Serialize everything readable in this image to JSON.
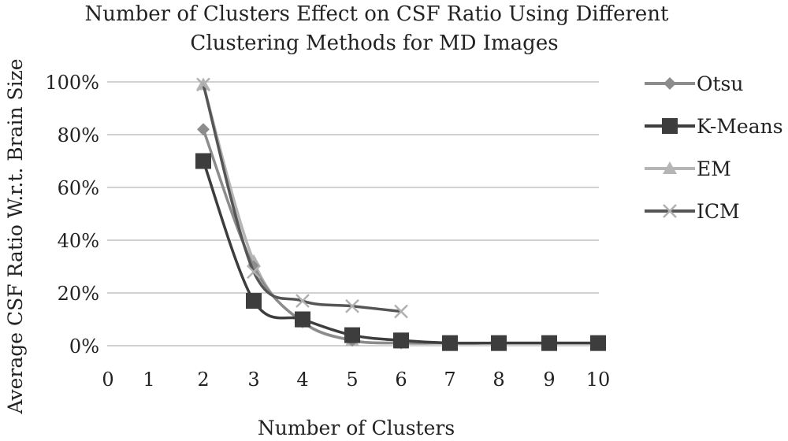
{
  "chart_data": {
    "type": "line",
    "title_lines": [
      "Number of Clusters Effect on CSF Ratio Using Different",
      "Clustering Methods for MD Images"
    ],
    "xlabel": "Number of Clusters",
    "ylabel": "Average CSF Ratio W.r.t. Brain Size",
    "x_tick_labels": [
      "0",
      "1",
      "2",
      "3",
      "4",
      "5",
      "6",
      "7",
      "8",
      "9",
      "10"
    ],
    "y_tick_labels": [
      "0%",
      "20%",
      "40%",
      "60%",
      "80%",
      "100%"
    ],
    "ylim": [
      0,
      100
    ],
    "grid": true,
    "legend_position": "right",
    "series": [
      {
        "name": "Otsu",
        "marker": "diamond",
        "color": "#8c8c8c",
        "x": [
          2,
          3,
          4,
          5,
          6,
          7,
          8,
          9,
          10
        ],
        "values": [
          82,
          30,
          9,
          2,
          1,
          1,
          1,
          1,
          1
        ]
      },
      {
        "name": "K-Means",
        "marker": "square",
        "color": "#3d3d3d",
        "x": [
          2,
          3,
          4,
          5,
          6,
          7,
          8,
          9,
          10
        ],
        "values": [
          70,
          17,
          10,
          4,
          2,
          1,
          1,
          1,
          1
        ]
      },
      {
        "name": "EM",
        "marker": "triangle",
        "color": "#b5b5b5",
        "x": [
          2,
          3,
          4,
          5,
          6,
          7,
          8,
          9,
          10
        ],
        "values": [
          99,
          32,
          9,
          2,
          1,
          1,
          1,
          1,
          1
        ]
      },
      {
        "name": "ICM",
        "marker": "x",
        "color": "#555555",
        "x": [
          2,
          3,
          4,
          5,
          6
        ],
        "values": [
          99,
          28,
          17,
          15,
          13
        ]
      }
    ]
  }
}
